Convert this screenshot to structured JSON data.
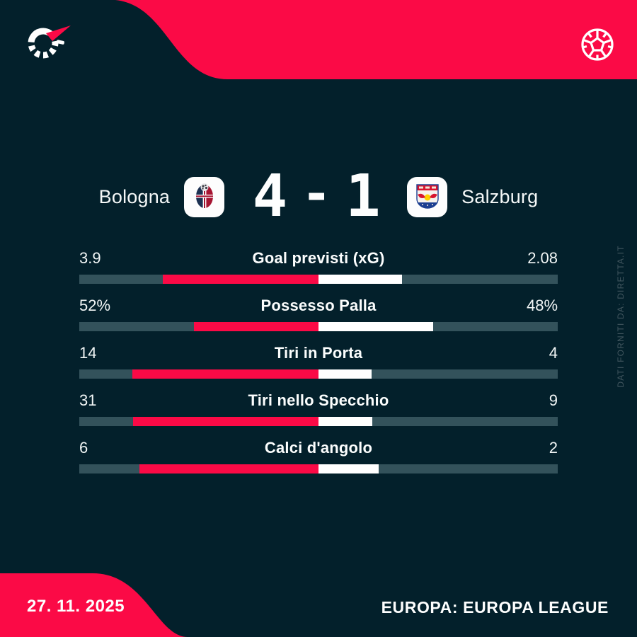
{
  "meta": {
    "background_color": "#03202b",
    "accent_color": "#fb0a46",
    "bar_track_color": "#33525b",
    "bar_home_color": "#fb0a46",
    "bar_away_color": "#ffffff"
  },
  "header": {
    "logo_icon": "flashscore-logo",
    "sport_icon": "football"
  },
  "match": {
    "home": {
      "name": "Bologna"
    },
    "away": {
      "name": "Salzburg"
    },
    "score": {
      "home": "4",
      "separator": "-",
      "away": "1"
    }
  },
  "stats": {
    "rows": [
      {
        "label": "Goal previsti (xG)",
        "home": "3.9",
        "away": "2.08",
        "home_num": 3.9,
        "away_num": 2.08
      },
      {
        "label": "Possesso Palla",
        "home": "52%",
        "away": "48%",
        "home_num": 52,
        "away_num": 48
      },
      {
        "label": "Tiri in Porta",
        "home": "14",
        "away": "4",
        "home_num": 14,
        "away_num": 4
      },
      {
        "label": "Tiri nello Specchio",
        "home": "31",
        "away": "9",
        "home_num": 31,
        "away_num": 9
      },
      {
        "label": "Calci d'angolo",
        "home": "6",
        "away": "2",
        "home_num": 6,
        "away_num": 2
      }
    ]
  },
  "footer": {
    "date": "27. 11. 2025",
    "competition": "EUROPA: EUROPA LEAGUE"
  },
  "watermark": "DATI FORNITI DA: DIRETTA.IT",
  "chart_data": {
    "type": "bar",
    "title": "Bologna 4 - 1 Salzburg",
    "categories": [
      "Goal previsti (xG)",
      "Possesso Palla",
      "Tiri in Porta",
      "Tiri nello Specchio",
      "Calci d'angolo"
    ],
    "series": [
      {
        "name": "Bologna",
        "values": [
          3.9,
          52,
          14,
          31,
          6
        ]
      },
      {
        "name": "Salzburg",
        "values": [
          2.08,
          48,
          4,
          9,
          2
        ]
      }
    ],
    "layout": "diverging-from-center, home share left (pink), away share right (white), each bar scaled to home/(home+away)"
  }
}
